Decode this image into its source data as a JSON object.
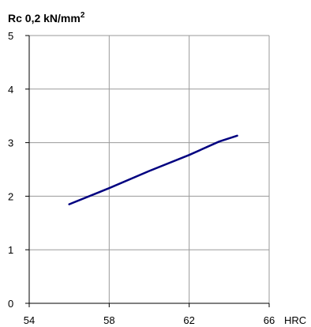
{
  "chart_data": {
    "type": "line",
    "title": "Rc 0,2 kN/mm",
    "title_superscript": "2",
    "xlabel": "HRC",
    "ylabel": "",
    "xlim": [
      54,
      66
    ],
    "ylim": [
      0,
      5
    ],
    "x_ticks": [
      54,
      58,
      62,
      66
    ],
    "y_ticks": [
      0,
      1,
      2,
      3,
      4,
      5
    ],
    "grid": true,
    "legend": "none",
    "series": [
      {
        "color": "#000080",
        "x": [
          56.0,
          58.0,
          60.0,
          62.0,
          63.5,
          64.4
        ],
        "y": [
          1.85,
          2.15,
          2.47,
          2.77,
          3.02,
          3.13
        ]
      }
    ]
  }
}
